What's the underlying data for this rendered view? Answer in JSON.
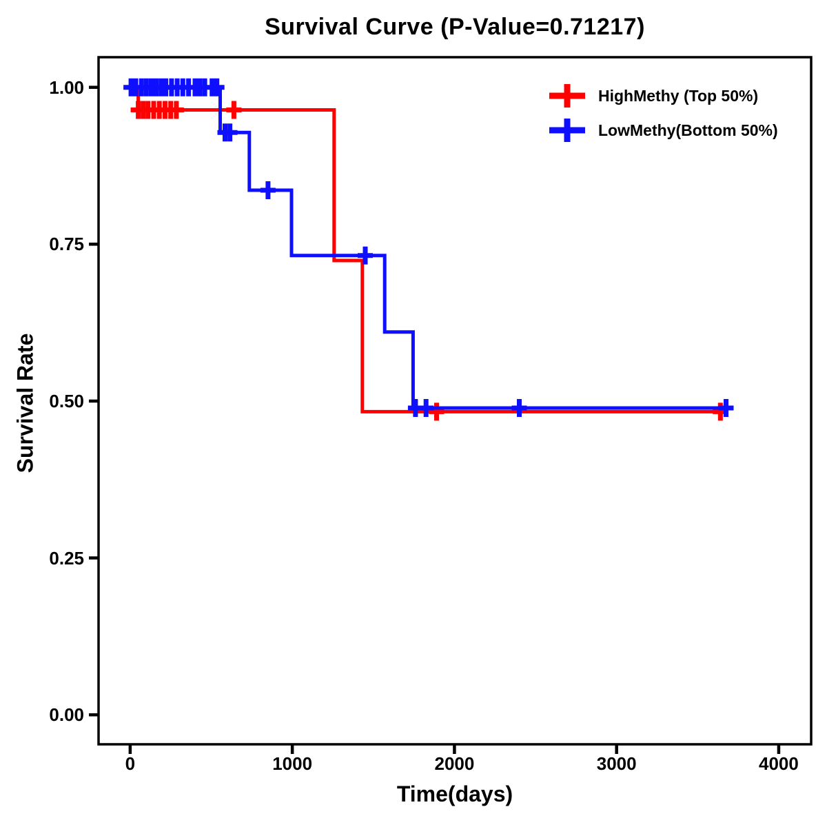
{
  "title": "Survival Curve (P-Value=0.71217)",
  "axes": {
    "x": {
      "label": "Time(days)",
      "ticks": [
        {
          "value": 0,
          "label": "0"
        },
        {
          "value": 1000,
          "label": "1000"
        },
        {
          "value": 2000,
          "label": "2000"
        },
        {
          "value": 3000,
          "label": "3000"
        },
        {
          "value": 4000,
          "label": "4000"
        }
      ]
    },
    "y": {
      "label": "Survival Rate",
      "ticks": [
        {
          "value": 1.0,
          "label": "1.00"
        },
        {
          "value": 0.75,
          "label": "0.75"
        },
        {
          "value": 0.5,
          "label": "0.50"
        },
        {
          "value": 0.25,
          "label": "0.25"
        },
        {
          "value": 0.0,
          "label": "0.00"
        }
      ]
    }
  },
  "legend": [
    {
      "label": "HighMethy (Top 50%)",
      "color": "#FF0000"
    },
    {
      "label": "LowMethy(Bottom 50%)",
      "color": "#0F0FFF"
    }
  ],
  "chart_data": {
    "type": "line",
    "subtype": "kaplan-meier-step-curve",
    "title": "Survival Curve (P-Value=0.71217)",
    "p_value": 0.71217,
    "xlabel": "Time(days)",
    "ylabel": "Survival Rate",
    "xlim": [
      0,
      4000
    ],
    "ylim": [
      0.0,
      1.0
    ],
    "grid": false,
    "legend_position": "top-right-inside",
    "series": [
      {
        "name": "HighMethy (Top 50%)",
        "color": "#FF0000",
        "steps": [
          [
            0,
            1.0
          ],
          [
            50,
            0.964
          ],
          [
            1258,
            0.724
          ],
          [
            1432,
            0.483
          ],
          [
            3640,
            0.483
          ]
        ],
        "censors": [
          [
            50,
            0.964
          ],
          [
            80,
            0.964
          ],
          [
            110,
            0.964
          ],
          [
            145,
            0.964
          ],
          [
            180,
            0.964
          ],
          [
            215,
            0.964
          ],
          [
            250,
            0.964
          ],
          [
            285,
            0.964
          ],
          [
            640,
            0.964
          ],
          [
            1890,
            0.483
          ],
          [
            3640,
            0.483
          ]
        ]
      },
      {
        "name": "LowMethy(Bottom 50%)",
        "color": "#0F0FFF",
        "steps": [
          [
            0,
            1.0
          ],
          [
            555,
            0.928
          ],
          [
            735,
            0.836
          ],
          [
            995,
            0.732
          ],
          [
            1570,
            0.61
          ],
          [
            1745,
            0.489
          ],
          [
            3675,
            0.489
          ]
        ],
        "censors": [
          [
            5,
            1.0
          ],
          [
            35,
            1.0
          ],
          [
            70,
            1.0
          ],
          [
            100,
            1.0
          ],
          [
            130,
            1.0
          ],
          [
            160,
            1.0
          ],
          [
            190,
            1.0
          ],
          [
            220,
            1.0
          ],
          [
            255,
            1.0
          ],
          [
            290,
            1.0
          ],
          [
            325,
            1.0
          ],
          [
            360,
            1.0
          ],
          [
            400,
            1.0
          ],
          [
            430,
            1.0
          ],
          [
            460,
            1.0
          ],
          [
            505,
            1.0
          ],
          [
            535,
            1.0
          ],
          [
            585,
            0.928
          ],
          [
            615,
            0.928
          ],
          [
            850,
            0.836
          ],
          [
            1450,
            0.732
          ],
          [
            1760,
            0.489
          ],
          [
            1825,
            0.489
          ],
          [
            2400,
            0.489
          ],
          [
            3675,
            0.489
          ]
        ]
      }
    ]
  }
}
